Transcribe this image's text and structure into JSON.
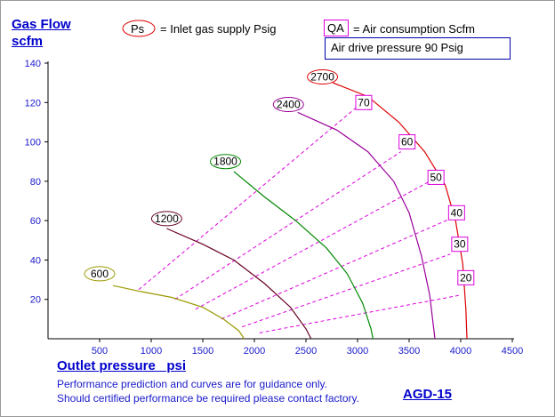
{
  "chart_data": {
    "type": "line",
    "model": "AGD-15",
    "ylabel_line1": "Gas Flow",
    "ylabel_line2": "scfm",
    "xlabel": "Outlet pressure   psi",
    "xlim": [
      0,
      4500
    ],
    "ylim": [
      0,
      140
    ],
    "x_ticks": [
      500,
      1000,
      1500,
      2000,
      2500,
      3000,
      3500,
      4000,
      4500
    ],
    "y_ticks": [
      20,
      40,
      60,
      80,
      100,
      120,
      140
    ],
    "legend": {
      "ps_symbol": "Ps",
      "ps_text": "= Inlet gas supply  Psig",
      "qa_symbol": "QA",
      "qa_text": "= Air consumption  Scfm",
      "drive_box": "Air drive pressure  90 Psig"
    },
    "note_line1": "Performance prediction and curves are for guidance only.",
    "note_line2": "Should certified performance be required please contact factory.",
    "series": [
      {
        "name": "600",
        "color": "#999900",
        "label_pos": [
          500,
          33
        ],
        "points": [
          [
            630,
            27
          ],
          [
            900,
            24
          ],
          [
            1200,
            21
          ],
          [
            1500,
            16
          ],
          [
            1700,
            10
          ],
          [
            1850,
            4
          ],
          [
            1900,
            0
          ]
        ]
      },
      {
        "name": "1200",
        "color": "#660022",
        "label_pos": [
          1150,
          61
        ],
        "points": [
          [
            1150,
            56
          ],
          [
            1500,
            48
          ],
          [
            1800,
            40
          ],
          [
            2100,
            28
          ],
          [
            2350,
            16
          ],
          [
            2500,
            5
          ],
          [
            2550,
            0
          ]
        ]
      },
      {
        "name": "1800",
        "color": "#008800",
        "label_pos": [
          1720,
          90
        ],
        "points": [
          [
            1800,
            85
          ],
          [
            2100,
            72
          ],
          [
            2400,
            60
          ],
          [
            2700,
            46
          ],
          [
            2900,
            33
          ],
          [
            3050,
            18
          ],
          [
            3130,
            5
          ],
          [
            3150,
            0
          ]
        ]
      },
      {
        "name": "2400",
        "color": "#990099",
        "label_pos": [
          2330,
          119
        ],
        "points": [
          [
            2420,
            115
          ],
          [
            2800,
            106
          ],
          [
            3100,
            95
          ],
          [
            3350,
            80
          ],
          [
            3500,
            64
          ],
          [
            3620,
            42
          ],
          [
            3700,
            22
          ],
          [
            3750,
            0
          ]
        ]
      },
      {
        "name": "2700",
        "color": "#dd0000",
        "label_pos": [
          2660,
          133
        ],
        "points": [
          [
            2760,
            130
          ],
          [
            3100,
            123
          ],
          [
            3400,
            110
          ],
          [
            3650,
            95
          ],
          [
            3850,
            78
          ],
          [
            3950,
            60
          ],
          [
            4020,
            38
          ],
          [
            4050,
            15
          ],
          [
            4060,
            0
          ]
        ]
      }
    ],
    "qa_lines": [
      {
        "label": "70",
        "from": [
          880,
          25
        ],
        "to": [
          3000,
          118
        ],
        "label_pos": [
          3060,
          120
        ]
      },
      {
        "label": "60",
        "from": [
          1230,
          20
        ],
        "to": [
          3420,
          95
        ],
        "label_pos": [
          3480,
          100
        ]
      },
      {
        "label": "50",
        "from": [
          1430,
          15
        ],
        "to": [
          3700,
          80
        ],
        "label_pos": [
          3760,
          82
        ]
      },
      {
        "label": "40",
        "from": [
          1680,
          10
        ],
        "to": [
          3900,
          61
        ],
        "label_pos": [
          3960,
          64
        ]
      },
      {
        "label": "30",
        "from": [
          1880,
          6
        ],
        "to": [
          3900,
          43
        ],
        "label_pos": [
          3990,
          48
        ]
      },
      {
        "label": "20",
        "from": [
          2050,
          3
        ],
        "to": [
          3980,
          22
        ],
        "label_pos": [
          4050,
          31
        ]
      }
    ],
    "qa_line_color": "#dd00dd",
    "axis_color": "#000000",
    "tick_label_color": "#1a1acc"
  }
}
